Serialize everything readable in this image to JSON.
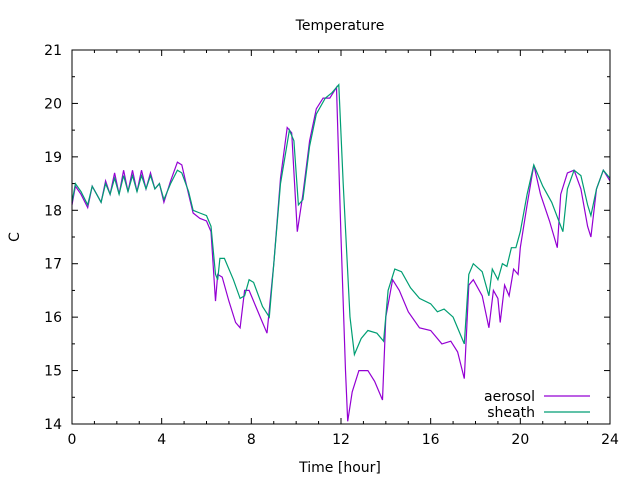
{
  "chart_data": {
    "type": "line",
    "title": "Temperature",
    "xlabel": "Time [hour]",
    "ylabel": "C",
    "xlim": [
      0,
      24
    ],
    "ylim": [
      14,
      21
    ],
    "xticks": [
      "0",
      "4",
      "8",
      "12",
      "16",
      "20",
      "24"
    ],
    "yticks": [
      "14",
      "15",
      "16",
      "17",
      "18",
      "19",
      "20",
      "21"
    ],
    "grid": false,
    "legend_position": "bottom-right",
    "series": [
      {
        "name": "aerosol",
        "color": "#9400d3",
        "points": [
          [
            0,
            18.1
          ],
          [
            0.15,
            18.45
          ],
          [
            0.4,
            18.3
          ],
          [
            0.7,
            18.05
          ],
          [
            0.9,
            18.45
          ],
          [
            1.1,
            18.3
          ],
          [
            1.3,
            18.15
          ],
          [
            1.5,
            18.55
          ],
          [
            1.7,
            18.3
          ],
          [
            1.9,
            18.7
          ],
          [
            2.1,
            18.3
          ],
          [
            2.3,
            18.75
          ],
          [
            2.5,
            18.35
          ],
          [
            2.7,
            18.75
          ],
          [
            2.9,
            18.35
          ],
          [
            3.1,
            18.75
          ],
          [
            3.3,
            18.4
          ],
          [
            3.5,
            18.7
          ],
          [
            3.7,
            18.4
          ],
          [
            3.9,
            18.5
          ],
          [
            4.1,
            18.15
          ],
          [
            4.4,
            18.55
          ],
          [
            4.7,
            18.9
          ],
          [
            4.9,
            18.85
          ],
          [
            5.2,
            18.3
          ],
          [
            5.4,
            17.95
          ],
          [
            5.7,
            17.85
          ],
          [
            6.0,
            17.8
          ],
          [
            6.2,
            17.6
          ],
          [
            6.4,
            16.3
          ],
          [
            6.5,
            16.8
          ],
          [
            6.7,
            16.75
          ],
          [
            7.0,
            16.3
          ],
          [
            7.3,
            15.9
          ],
          [
            7.5,
            15.8
          ],
          [
            7.7,
            16.5
          ],
          [
            7.9,
            16.5
          ],
          [
            8.2,
            16.2
          ],
          [
            8.5,
            15.9
          ],
          [
            8.7,
            15.7
          ],
          [
            9.0,
            17.0
          ],
          [
            9.3,
            18.6
          ],
          [
            9.6,
            19.55
          ],
          [
            9.8,
            19.45
          ],
          [
            10.05,
            17.6
          ],
          [
            10.3,
            18.3
          ],
          [
            10.6,
            19.3
          ],
          [
            10.9,
            19.9
          ],
          [
            11.2,
            20.1
          ],
          [
            11.5,
            20.1
          ],
          [
            11.8,
            20.3
          ],
          [
            12.0,
            17.5
          ],
          [
            12.2,
            15.0
          ],
          [
            12.3,
            14.05
          ],
          [
            12.5,
            14.6
          ],
          [
            12.8,
            15.0
          ],
          [
            13.2,
            15.0
          ],
          [
            13.5,
            14.8
          ],
          [
            13.85,
            14.45
          ],
          [
            14.0,
            16.0
          ],
          [
            14.3,
            16.7
          ],
          [
            14.6,
            16.5
          ],
          [
            15.0,
            16.1
          ],
          [
            15.5,
            15.8
          ],
          [
            16.0,
            15.75
          ],
          [
            16.5,
            15.5
          ],
          [
            16.9,
            15.55
          ],
          [
            17.2,
            15.35
          ],
          [
            17.5,
            14.85
          ],
          [
            17.7,
            16.6
          ],
          [
            17.9,
            16.7
          ],
          [
            18.3,
            16.4
          ],
          [
            18.6,
            15.8
          ],
          [
            18.8,
            16.5
          ],
          [
            19.0,
            16.35
          ],
          [
            19.1,
            15.9
          ],
          [
            19.3,
            16.6
          ],
          [
            19.5,
            16.4
          ],
          [
            19.7,
            16.9
          ],
          [
            19.9,
            16.8
          ],
          [
            20.0,
            17.3
          ],
          [
            20.3,
            18.1
          ],
          [
            20.6,
            18.85
          ],
          [
            20.9,
            18.3
          ],
          [
            21.3,
            17.8
          ],
          [
            21.65,
            17.3
          ],
          [
            21.8,
            18.3
          ],
          [
            22.1,
            18.7
          ],
          [
            22.4,
            18.75
          ],
          [
            22.7,
            18.4
          ],
          [
            23.0,
            17.7
          ],
          [
            23.15,
            17.5
          ],
          [
            23.4,
            18.4
          ],
          [
            23.7,
            18.75
          ],
          [
            24.0,
            18.55
          ]
        ]
      },
      {
        "name": "sheath",
        "color": "#009e73",
        "points": [
          [
            0,
            18.15
          ],
          [
            0.15,
            18.5
          ],
          [
            0.4,
            18.35
          ],
          [
            0.7,
            18.1
          ],
          [
            0.9,
            18.45
          ],
          [
            1.1,
            18.3
          ],
          [
            1.3,
            18.15
          ],
          [
            1.5,
            18.5
          ],
          [
            1.7,
            18.3
          ],
          [
            1.9,
            18.6
          ],
          [
            2.1,
            18.3
          ],
          [
            2.3,
            18.65
          ],
          [
            2.5,
            18.35
          ],
          [
            2.7,
            18.65
          ],
          [
            2.9,
            18.35
          ],
          [
            3.1,
            18.65
          ],
          [
            3.3,
            18.4
          ],
          [
            3.5,
            18.65
          ],
          [
            3.7,
            18.4
          ],
          [
            3.9,
            18.5
          ],
          [
            4.1,
            18.2
          ],
          [
            4.4,
            18.5
          ],
          [
            4.7,
            18.75
          ],
          [
            4.9,
            18.7
          ],
          [
            5.2,
            18.35
          ],
          [
            5.4,
            18.0
          ],
          [
            5.7,
            17.95
          ],
          [
            6.0,
            17.9
          ],
          [
            6.2,
            17.7
          ],
          [
            6.4,
            16.8
          ],
          [
            6.5,
            16.7
          ],
          [
            6.6,
            17.1
          ],
          [
            6.8,
            17.1
          ],
          [
            7.2,
            16.7
          ],
          [
            7.5,
            16.35
          ],
          [
            7.7,
            16.4
          ],
          [
            7.9,
            16.7
          ],
          [
            8.1,
            16.65
          ],
          [
            8.5,
            16.2
          ],
          [
            8.8,
            16.0
          ],
          [
            9.0,
            17.0
          ],
          [
            9.3,
            18.5
          ],
          [
            9.7,
            19.5
          ],
          [
            9.9,
            19.3
          ],
          [
            10.1,
            18.1
          ],
          [
            10.3,
            18.2
          ],
          [
            10.6,
            19.2
          ],
          [
            10.9,
            19.8
          ],
          [
            11.3,
            20.1
          ],
          [
            11.6,
            20.2
          ],
          [
            11.9,
            20.35
          ],
          [
            12.1,
            18.5
          ],
          [
            12.4,
            16.0
          ],
          [
            12.6,
            15.3
          ],
          [
            12.9,
            15.6
          ],
          [
            13.2,
            15.75
          ],
          [
            13.6,
            15.7
          ],
          [
            13.9,
            15.55
          ],
          [
            14.1,
            16.5
          ],
          [
            14.4,
            16.9
          ],
          [
            14.7,
            16.85
          ],
          [
            15.1,
            16.55
          ],
          [
            15.5,
            16.35
          ],
          [
            16.0,
            16.25
          ],
          [
            16.3,
            16.1
          ],
          [
            16.6,
            16.15
          ],
          [
            17.0,
            16.0
          ],
          [
            17.5,
            15.5
          ],
          [
            17.7,
            16.8
          ],
          [
            17.9,
            17.0
          ],
          [
            18.3,
            16.85
          ],
          [
            18.6,
            16.4
          ],
          [
            18.75,
            16.9
          ],
          [
            19.0,
            16.7
          ],
          [
            19.2,
            17.0
          ],
          [
            19.4,
            16.95
          ],
          [
            19.6,
            17.3
          ],
          [
            19.8,
            17.3
          ],
          [
            20.0,
            17.6
          ],
          [
            20.3,
            18.3
          ],
          [
            20.6,
            18.85
          ],
          [
            21.0,
            18.45
          ],
          [
            21.4,
            18.15
          ],
          [
            21.9,
            17.6
          ],
          [
            22.1,
            18.4
          ],
          [
            22.4,
            18.75
          ],
          [
            22.7,
            18.65
          ],
          [
            23.0,
            18.1
          ],
          [
            23.15,
            17.9
          ],
          [
            23.4,
            18.4
          ],
          [
            23.7,
            18.75
          ],
          [
            24.0,
            18.6
          ]
        ]
      }
    ]
  }
}
